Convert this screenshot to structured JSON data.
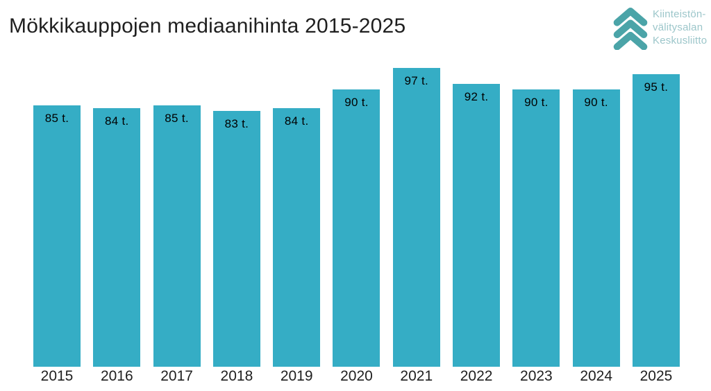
{
  "page": {
    "background_color": "#ffffff"
  },
  "header": {
    "title": "Mökkikauppojen mediaanihinta 2015-2025",
    "title_color": "#1f1f1f"
  },
  "logo": {
    "org_name": "Kiinteistönvälitysalan Keskusliitto",
    "lines": [
      "Kiinteistön-",
      "välitysalan",
      "Keskusliitto"
    ],
    "icon": "triple-chevron-up-icon",
    "icon_color": "#4ba4a8",
    "text_color": "#9cc6ca"
  },
  "chart_data": {
    "type": "bar",
    "title": "Mökkikauppojen mediaanihinta 2015-2025",
    "categories": [
      "2015",
      "2016",
      "2017",
      "2018",
      "2019",
      "2020",
      "2021",
      "2022",
      "2023",
      "2024",
      "2025"
    ],
    "values": [
      85,
      84,
      85,
      83,
      84,
      90,
      97,
      92,
      90,
      90,
      95
    ],
    "data_labels": [
      "85 t.",
      "84 t.",
      "85 t.",
      "83 t.",
      "84 t.",
      "90 t.",
      "97 t.",
      "92 t.",
      "90 t.",
      "90 t.",
      "95 t."
    ],
    "unit": "t.",
    "xlabel": "",
    "ylabel": "",
    "ylim": [
      0,
      100
    ],
    "grid": false,
    "legend": false,
    "axis_lines": false,
    "bar_color": "#35adc5",
    "data_label_color": "#000000",
    "category_label_color": "#1f1f1f"
  }
}
